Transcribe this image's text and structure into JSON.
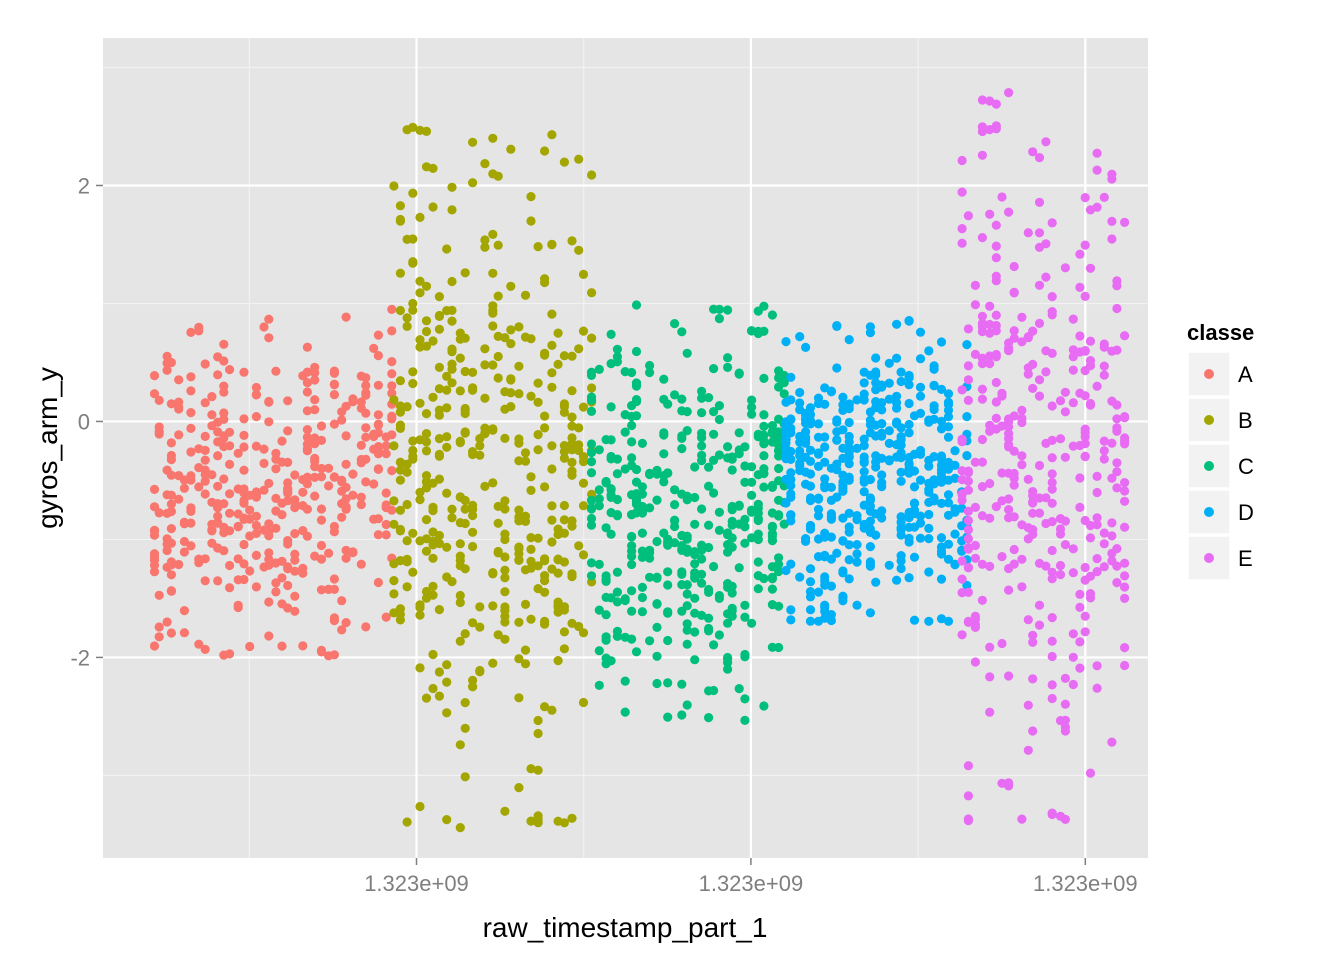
{
  "chart_data": {
    "type": "scatter",
    "title": "",
    "xlabel": "raw_timestamp_part_1",
    "ylabel": "gyros_arm_y",
    "ylim": [
      -3.7,
      3.25
    ],
    "y_ticks": [
      -2,
      0,
      2
    ],
    "y_tick_labels": [
      "-2",
      "0",
      "2"
    ],
    "x_tick_labels": [
      "1.323e+09",
      "1.323e+09",
      "1.323e+09"
    ],
    "grid": true,
    "legend": {
      "title": "classe",
      "placement": "right"
    },
    "series": [
      {
        "name": "A",
        "color": "#F8766D",
        "x_band": [
          0.045,
          0.28
        ],
        "ymin": -2.0,
        "ymax": 1.0,
        "n": 420
      },
      {
        "name": "B",
        "color": "#A3A500",
        "x_band": [
          0.275,
          0.47
        ],
        "ymin": -3.45,
        "ymax": 2.5,
        "n": 420
      },
      {
        "name": "C",
        "color": "#00BF7D",
        "x_band": [
          0.465,
          0.655
        ],
        "ymin": -2.55,
        "ymax": 1.0,
        "n": 420
      },
      {
        "name": "D",
        "color": "#00B0F6",
        "x_band": [
          0.65,
          0.83
        ],
        "ymin": -1.7,
        "ymax": 0.9,
        "n": 420
      },
      {
        "name": "E",
        "color": "#E76BF3",
        "x_band": [
          0.82,
          0.98
        ],
        "ymin": -3.4,
        "ymax": 2.8,
        "n": 420
      }
    ]
  }
}
